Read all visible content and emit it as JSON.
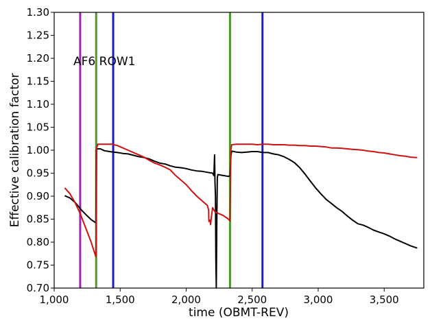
{
  "chart_data": {
    "type": "line",
    "title": "",
    "xlabel": "time (OBMT-REV)",
    "ylabel": "Effective calibration factor",
    "xlim": [
      1000,
      3800
    ],
    "ylim": [
      0.7,
      1.3
    ],
    "x_ticks": [
      1000,
      1500,
      2000,
      2500,
      3000,
      3500
    ],
    "x_tick_labels": [
      "1,000",
      "1,500",
      "2,000",
      "2,500",
      "3,000",
      "3,500"
    ],
    "y_ticks": [
      0.7,
      0.75,
      0.8,
      0.85,
      0.9,
      0.95,
      1.0,
      1.05,
      1.1,
      1.15,
      1.2,
      1.25,
      1.3
    ],
    "y_tick_labels": [
      "0.70",
      "0.75",
      "0.80",
      "0.85",
      "0.90",
      "0.95",
      "1.00",
      "1.05",
      "1.10",
      "1.15",
      "1.20",
      "1.25",
      "1.30"
    ],
    "grid": false,
    "legend": "none",
    "annotation": "AF6 ROW1",
    "vlines": [
      {
        "x": 1197,
        "color": "#a020c0"
      },
      {
        "x": 1318,
        "color": "#4a9a2a"
      },
      {
        "x": 1447,
        "color": "#1a1ad0"
      },
      {
        "x": 2332,
        "color": "#4a9a2a"
      },
      {
        "x": 2578,
        "color": "#1a1ad0"
      }
    ],
    "series": [
      {
        "color": "#000000",
        "points": [
          [
            1080,
            0.901
          ],
          [
            1120,
            0.896
          ],
          [
            1160,
            0.886
          ],
          [
            1200,
            0.872
          ],
          [
            1240,
            0.86
          ],
          [
            1280,
            0.849
          ],
          [
            1316,
            0.842
          ],
          [
            1320,
            1.0
          ],
          [
            1325,
            1.003
          ],
          [
            1350,
            1.003
          ],
          [
            1380,
            0.999
          ],
          [
            1420,
            0.997
          ],
          [
            1450,
            0.996
          ],
          [
            1480,
            0.995
          ],
          [
            1520,
            0.993
          ],
          [
            1560,
            0.992
          ],
          [
            1600,
            0.989
          ],
          [
            1640,
            0.986
          ],
          [
            1680,
            0.984
          ],
          [
            1720,
            0.981
          ],
          [
            1760,
            0.976
          ],
          [
            1800,
            0.972
          ],
          [
            1840,
            0.97
          ],
          [
            1880,
            0.966
          ],
          [
            1920,
            0.963
          ],
          [
            1960,
            0.962
          ],
          [
            2000,
            0.96
          ],
          [
            2040,
            0.957
          ],
          [
            2080,
            0.955
          ],
          [
            2120,
            0.954
          ],
          [
            2160,
            0.952
          ],
          [
            2200,
            0.95
          ],
          [
            2210,
            0.945
          ],
          [
            2215,
            0.99
          ],
          [
            2218,
            0.93
          ],
          [
            2222,
            0.9
          ],
          [
            2225,
            0.76
          ],
          [
            2228,
            0.7
          ],
          [
            2232,
            0.85
          ],
          [
            2236,
            0.94
          ],
          [
            2240,
            0.947
          ],
          [
            2280,
            0.945
          ],
          [
            2320,
            0.943
          ],
          [
            2332,
            0.945
          ],
          [
            2340,
            0.99
          ],
          [
            2345,
            0.998
          ],
          [
            2380,
            0.996
          ],
          [
            2420,
            0.995
          ],
          [
            2460,
            0.996
          ],
          [
            2500,
            0.997
          ],
          [
            2540,
            0.997
          ],
          [
            2580,
            0.995
          ],
          [
            2620,
            0.995
          ],
          [
            2660,
            0.992
          ],
          [
            2700,
            0.99
          ],
          [
            2740,
            0.986
          ],
          [
            2780,
            0.98
          ],
          [
            2820,
            0.973
          ],
          [
            2860,
            0.962
          ],
          [
            2900,
            0.948
          ],
          [
            2940,
            0.933
          ],
          [
            2980,
            0.918
          ],
          [
            3020,
            0.905
          ],
          [
            3060,
            0.893
          ],
          [
            3100,
            0.884
          ],
          [
            3140,
            0.875
          ],
          [
            3180,
            0.867
          ],
          [
            3220,
            0.857
          ],
          [
            3260,
            0.848
          ],
          [
            3300,
            0.84
          ],
          [
            3340,
            0.837
          ],
          [
            3380,
            0.832
          ],
          [
            3420,
            0.826
          ],
          [
            3460,
            0.822
          ],
          [
            3500,
            0.818
          ],
          [
            3540,
            0.813
          ],
          [
            3580,
            0.807
          ],
          [
            3620,
            0.802
          ],
          [
            3660,
            0.797
          ],
          [
            3700,
            0.792
          ],
          [
            3750,
            0.787
          ]
        ]
      },
      {
        "color": "#d01010",
        "points": [
          [
            1080,
            0.918
          ],
          [
            1120,
            0.905
          ],
          [
            1160,
            0.885
          ],
          [
            1200,
            0.86
          ],
          [
            1240,
            0.83
          ],
          [
            1280,
            0.8
          ],
          [
            1316,
            0.768
          ],
          [
            1322,
            1.005
          ],
          [
            1330,
            1.013
          ],
          [
            1360,
            1.013
          ],
          [
            1400,
            1.013
          ],
          [
            1440,
            1.013
          ],
          [
            1480,
            1.01
          ],
          [
            1520,
            1.005
          ],
          [
            1560,
            1.0
          ],
          [
            1600,
            0.995
          ],
          [
            1640,
            0.99
          ],
          [
            1680,
            0.985
          ],
          [
            1720,
            0.978
          ],
          [
            1760,
            0.972
          ],
          [
            1800,
            0.968
          ],
          [
            1840,
            0.963
          ],
          [
            1880,
            0.957
          ],
          [
            1920,
            0.945
          ],
          [
            1960,
            0.935
          ],
          [
            2000,
            0.925
          ],
          [
            2040,
            0.912
          ],
          [
            2080,
            0.9
          ],
          [
            2120,
            0.89
          ],
          [
            2160,
            0.88
          ],
          [
            2170,
            0.87
          ],
          [
            2172,
            0.845
          ],
          [
            2180,
            0.848
          ],
          [
            2185,
            0.838
          ],
          [
            2190,
            0.853
          ],
          [
            2200,
            0.875
          ],
          [
            2210,
            0.87
          ],
          [
            2220,
            0.865
          ],
          [
            2240,
            0.863
          ],
          [
            2280,
            0.858
          ],
          [
            2320,
            0.85
          ],
          [
            2332,
            0.846
          ],
          [
            2338,
            1.0
          ],
          [
            2345,
            1.012
          ],
          [
            2380,
            1.013
          ],
          [
            2420,
            1.013
          ],
          [
            2460,
            1.013
          ],
          [
            2500,
            1.013
          ],
          [
            2540,
            1.012
          ],
          [
            2580,
            1.013
          ],
          [
            2620,
            1.013
          ],
          [
            2660,
            1.012
          ],
          [
            2700,
            1.012
          ],
          [
            2740,
            1.012
          ],
          [
            2780,
            1.011
          ],
          [
            2820,
            1.011
          ],
          [
            2860,
            1.01
          ],
          [
            2900,
            1.01
          ],
          [
            2940,
            1.009
          ],
          [
            2980,
            1.009
          ],
          [
            3020,
            1.008
          ],
          [
            3060,
            1.007
          ],
          [
            3100,
            1.005
          ],
          [
            3140,
            1.005
          ],
          [
            3180,
            1.004
          ],
          [
            3220,
            1.003
          ],
          [
            3260,
            1.002
          ],
          [
            3300,
            1.001
          ],
          [
            3340,
            1.0
          ],
          [
            3380,
            0.998
          ],
          [
            3420,
            0.997
          ],
          [
            3460,
            0.995
          ],
          [
            3500,
            0.994
          ],
          [
            3540,
            0.992
          ],
          [
            3580,
            0.99
          ],
          [
            3620,
            0.988
          ],
          [
            3660,
            0.987
          ],
          [
            3700,
            0.985
          ],
          [
            3750,
            0.984
          ]
        ]
      }
    ]
  }
}
